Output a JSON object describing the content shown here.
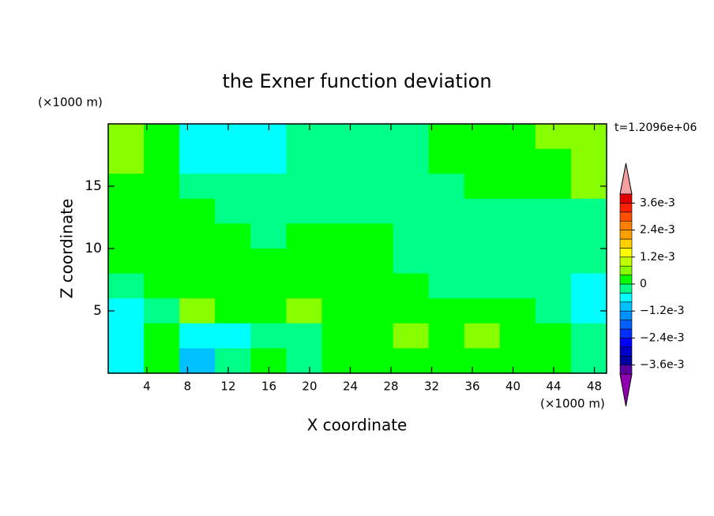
{
  "chart_data": {
    "type": "contour",
    "title": "the Exner function deviation",
    "x_label": "X coordinate",
    "y_label": "Z coordinate",
    "x_unit": "(×1000 m)",
    "y_unit": "(×1000 m)",
    "annotation": "t=1.2096e+06",
    "xlim": [
      0.2,
      49.2
    ],
    "ylim": [
      0,
      20
    ],
    "xticks": [
      4,
      8,
      12,
      16,
      20,
      24,
      28,
      32,
      36,
      40,
      44,
      48
    ],
    "yticks": [
      5,
      10,
      15
    ],
    "x": [
      1.95,
      5.45,
      8.95,
      12.45,
      15.95,
      19.45,
      22.95,
      26.45,
      29.95,
      33.45,
      36.95,
      40.45,
      43.95,
      47.45
    ],
    "y": [
      19,
      17,
      15,
      13,
      11,
      9,
      7,
      5,
      3,
      1
    ],
    "z": [
      [
        0.0006,
        0.0002,
        -0.0006,
        -0.0006,
        -0.0006,
        -0.0002,
        -0.0002,
        -0.0002,
        -0.0002,
        0.0002,
        0.0002,
        0.0002,
        0.0006,
        0.0006
      ],
      [
        0.0006,
        0.0002,
        -0.0006,
        -0.0006,
        -0.0006,
        -0.0002,
        -0.0002,
        -0.0002,
        -0.0002,
        0.0002,
        0.0002,
        0.0002,
        0.0002,
        0.0006
      ],
      [
        0.0002,
        0.0002,
        -0.0002,
        -0.0002,
        -0.0002,
        -0.0002,
        -0.0002,
        -0.0002,
        -0.0002,
        -0.0002,
        0.0002,
        0.0002,
        0.0002,
        0.0006
      ],
      [
        0.0002,
        0.0002,
        0.0002,
        -0.0002,
        -0.0002,
        -0.0002,
        -0.0002,
        -0.0002,
        -0.0002,
        -0.0002,
        -0.0002,
        -0.0002,
        -0.0002,
        -0.0002
      ],
      [
        0.0002,
        0.0002,
        0.0002,
        0.0002,
        -0.0002,
        0.0002,
        0.0002,
        0.0002,
        -0.0002,
        -0.0002,
        -0.0002,
        -0.0002,
        -0.0002,
        -0.0002
      ],
      [
        0.0002,
        0.0002,
        0.0002,
        0.0002,
        0.0002,
        0.0002,
        0.0002,
        0.0002,
        -0.0002,
        -0.0002,
        -0.0002,
        -0.0002,
        -0.0002,
        -0.0002
      ],
      [
        -0.0002,
        0.0002,
        0.0002,
        0.0002,
        0.0002,
        0.0002,
        0.0002,
        0.0002,
        0.0002,
        -0.0002,
        -0.0002,
        -0.0002,
        -0.0002,
        -0.0006
      ],
      [
        -0.0006,
        -0.0002,
        0.0006,
        0.0002,
        0.0002,
        0.0006,
        0.0002,
        0.0002,
        0.0002,
        0.0002,
        0.0002,
        0.0002,
        -0.0002,
        -0.0006
      ],
      [
        -0.0006,
        0.0002,
        -0.0006,
        -0.0006,
        -0.0002,
        -0.0002,
        0.0002,
        0.0002,
        0.0006,
        0.0002,
        0.0006,
        0.0002,
        0.0002,
        -0.0002
      ],
      [
        -0.0006,
        0.0002,
        -0.001,
        -0.0002,
        0.0002,
        -0.0002,
        0.0002,
        0.0002,
        0.0002,
        0.0002,
        0.0002,
        0.0002,
        0.0002,
        -0.0002
      ]
    ],
    "levels": [
      -0.004,
      -0.0036,
      -0.0032,
      -0.0028,
      -0.0024,
      -0.002,
      -0.0016,
      -0.0012,
      -0.0008,
      -0.0004,
      0,
      0.0004,
      0.0008,
      0.0012,
      0.0016,
      0.002,
      0.0024,
      0.0028,
      0.0032,
      0.0036,
      0.004
    ],
    "colors": [
      "#5a00a0",
      "#0000a0",
      "#0000c8",
      "#0000ff",
      "#0030ff",
      "#0060ff",
      "#0090ff",
      "#00c0ff",
      "#00ffff",
      "#00ff88",
      "#00ff00",
      "#88ff00",
      "#c0ff00",
      "#ffff00",
      "#ffd000",
      "#ffa000",
      "#ff8000",
      "#ff5000",
      "#ff2000",
      "#e00000"
    ],
    "under_color": "#9000b0",
    "over_color": "#f4a0a0",
    "colorbar_ticks": [
      {
        "value": 0.0036,
        "label": "3.6e-3"
      },
      {
        "value": 0.0024,
        "label": "2.4e-3"
      },
      {
        "value": 0.0012,
        "label": "1.2e-3"
      },
      0,
      {
        "value": -0.0012,
        "label": "−1.2e-3"
      },
      {
        "value": -0.0024,
        "label": "−2.4e-3"
      },
      {
        "value": -0.0036,
        "label": "−3.6e-3"
      }
    ]
  }
}
